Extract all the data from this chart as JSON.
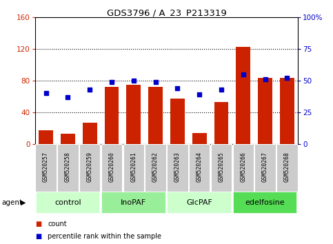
{
  "title": "GDS3796 / A_23_P213319",
  "samples": [
    "GSM520257",
    "GSM520258",
    "GSM520259",
    "GSM520260",
    "GSM520261",
    "GSM520262",
    "GSM520263",
    "GSM520264",
    "GSM520265",
    "GSM520266",
    "GSM520267",
    "GSM520268"
  ],
  "counts": [
    17,
    13,
    27,
    72,
    75,
    72,
    57,
    14,
    53,
    122,
    83,
    83
  ],
  "percentile_ranks": [
    40,
    37,
    43,
    49,
    50,
    49,
    44,
    39,
    43,
    55,
    51,
    52
  ],
  "bar_color": "#cc2200",
  "dot_color": "#0000cc",
  "left_ylim": [
    0,
    160
  ],
  "right_ylim": [
    0,
    100
  ],
  "left_yticks": [
    0,
    40,
    80,
    120,
    160
  ],
  "right_yticks": [
    0,
    25,
    50,
    75,
    100
  ],
  "right_yticklabels": [
    "0",
    "25",
    "50",
    "75",
    "100%"
  ],
  "groups": [
    {
      "label": "control",
      "start": 0,
      "end": 3,
      "color": "#ccffcc"
    },
    {
      "label": "InoPAF",
      "start": 3,
      "end": 6,
      "color": "#99ee99"
    },
    {
      "label": "GlcPAF",
      "start": 6,
      "end": 9,
      "color": "#ccffcc"
    },
    {
      "label": "edelfosine",
      "start": 9,
      "end": 12,
      "color": "#55dd55"
    }
  ],
  "agent_label": "agent",
  "legend_count": "count",
  "legend_pct": "percentile rank within the sample",
  "sample_box_color": "#cccccc",
  "plot_bg": "#ffffff"
}
